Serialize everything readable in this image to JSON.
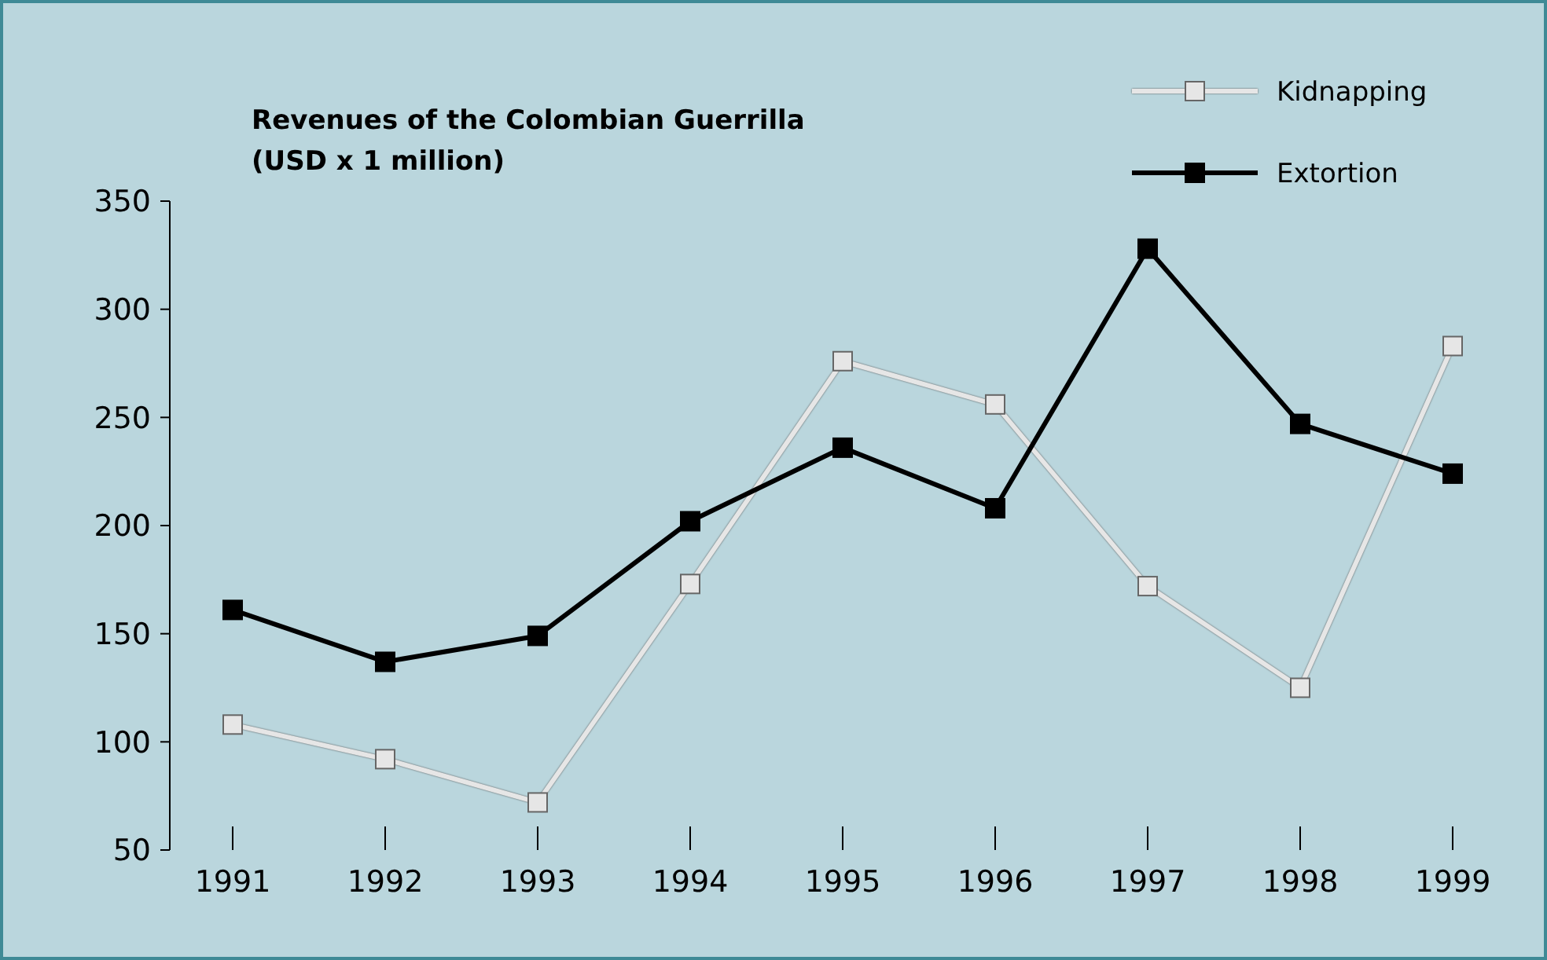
{
  "chart_data": {
    "type": "line",
    "title": "Revenues of the Colombian Guerrilla",
    "subtitle": "(USD x 1 million)",
    "categories": [
      "1991",
      "1992",
      "1993",
      "1994",
      "1995",
      "1996",
      "1997",
      "1998",
      "1999"
    ],
    "series": [
      {
        "name": "Kidnapping",
        "color": "#e6e6e6",
        "values": [
          108,
          92,
          72,
          173,
          276,
          256,
          172,
          125,
          283
        ]
      },
      {
        "name": "Extortion",
        "color": "#000000",
        "values": [
          161,
          137,
          149,
          202,
          236,
          208,
          328,
          247,
          224
        ]
      }
    ],
    "ylim": [
      50,
      350
    ],
    "yticks": [
      50,
      100,
      150,
      200,
      250,
      300,
      350
    ],
    "grid": false,
    "legend": "top right",
    "marker": "square",
    "line_style": "solid"
  }
}
